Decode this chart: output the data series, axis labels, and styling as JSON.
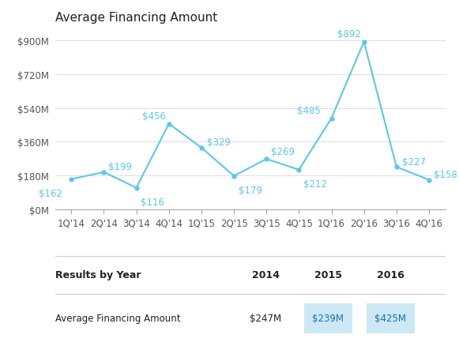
{
  "title": "Average Financing Amount",
  "x_labels": [
    "1Q'14",
    "2Q'14",
    "3Q'14",
    "4Q'14",
    "1Q'15",
    "2Q'15",
    "3Q'15",
    "4Q'15",
    "1Q'16",
    "2Q'16",
    "3Q'16",
    "4Q'16"
  ],
  "y_values": [
    162,
    199,
    116,
    456,
    329,
    179,
    269,
    212,
    485,
    892,
    227,
    158
  ],
  "point_labels": [
    "$162",
    "$199",
    "$116",
    "$456",
    "$329",
    "$179",
    "$269",
    "$212",
    "$485",
    "$892",
    "$227",
    "$158"
  ],
  "label_offsets_x": [
    -8,
    4,
    4,
    -3,
    5,
    4,
    4,
    4,
    -10,
    -3,
    5,
    4
  ],
  "label_offsets_y": [
    -13,
    5,
    -13,
    7,
    5,
    -13,
    7,
    -13,
    7,
    7,
    5,
    5
  ],
  "line_color": "#5bc8e8",
  "ytick_labels": [
    "$0M",
    "$180M",
    "$360M",
    "$540M",
    "$720M",
    "$900M"
  ],
  "ytick_values": [
    0,
    180,
    360,
    540,
    720,
    900
  ],
  "ylim": [
    0,
    970
  ],
  "title_fontsize": 11,
  "tick_fontsize": 8.5,
  "label_fontsize": 8.5,
  "table_header_left": "Results by Year",
  "table_header_years": [
    "2014",
    "2015",
    "2016"
  ],
  "table_row_label": "Average Financing Amount",
  "table_values": [
    "$247M",
    "$239M",
    "$425M"
  ],
  "table_highlight_indices": [
    1,
    2
  ],
  "highlight_color": "#cce8f5",
  "background_color": "#ffffff",
  "text_color_dark": "#222222",
  "text_color_mid": "#555555",
  "line_separator_color": "#cccccc",
  "grid_color": "#dddddd"
}
